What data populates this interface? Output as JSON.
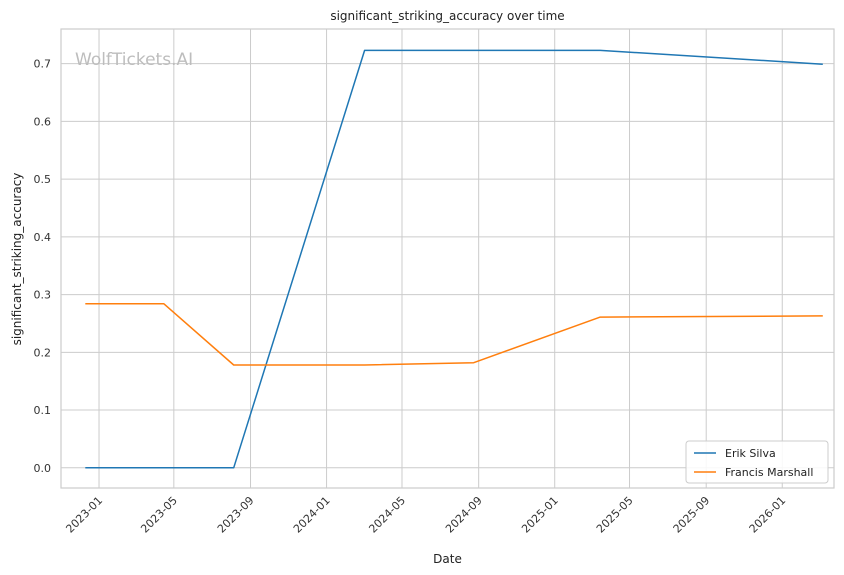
{
  "chart_data": {
    "type": "line",
    "title": "significant_striking_accuracy over time",
    "xlabel": "Date",
    "ylabel": "significant_striking_accuracy",
    "watermark": "WolfTickets.AI",
    "xlim": [
      "2022-11-01",
      "2026-03-25"
    ],
    "ylim": [
      -0.035,
      0.76
    ],
    "x_ticks": [
      "2023-01",
      "2023-05",
      "2023-09",
      "2024-01",
      "2024-05",
      "2024-09",
      "2025-01",
      "2025-05",
      "2025-09",
      "2026-01"
    ],
    "y_ticks": [
      "0.0",
      "0.1",
      "0.2",
      "0.3",
      "0.4",
      "0.5",
      "0.6",
      "0.7"
    ],
    "grid": true,
    "legend_position": "bottom-right",
    "series": [
      {
        "name": "Erik Silva",
        "color": "#1f77b4",
        "points": [
          {
            "x": "2022-12-10",
            "y": 0.0
          },
          {
            "x": "2023-04-15",
            "y": 0.0
          },
          {
            "x": "2023-08-05",
            "y": 0.0
          },
          {
            "x": "2024-03-02",
            "y": 0.723
          },
          {
            "x": "2024-08-24",
            "y": 0.723
          },
          {
            "x": "2025-03-15",
            "y": 0.723
          },
          {
            "x": "2026-03-07",
            "y": 0.699
          }
        ]
      },
      {
        "name": "Francis Marshall",
        "color": "#ff7f0e",
        "points": [
          {
            "x": "2022-12-10",
            "y": 0.284
          },
          {
            "x": "2023-04-15",
            "y": 0.284
          },
          {
            "x": "2023-08-05",
            "y": 0.178
          },
          {
            "x": "2024-03-02",
            "y": 0.178
          },
          {
            "x": "2024-08-24",
            "y": 0.182
          },
          {
            "x": "2025-03-15",
            "y": 0.261
          },
          {
            "x": "2026-03-07",
            "y": 0.263
          }
        ]
      }
    ]
  }
}
